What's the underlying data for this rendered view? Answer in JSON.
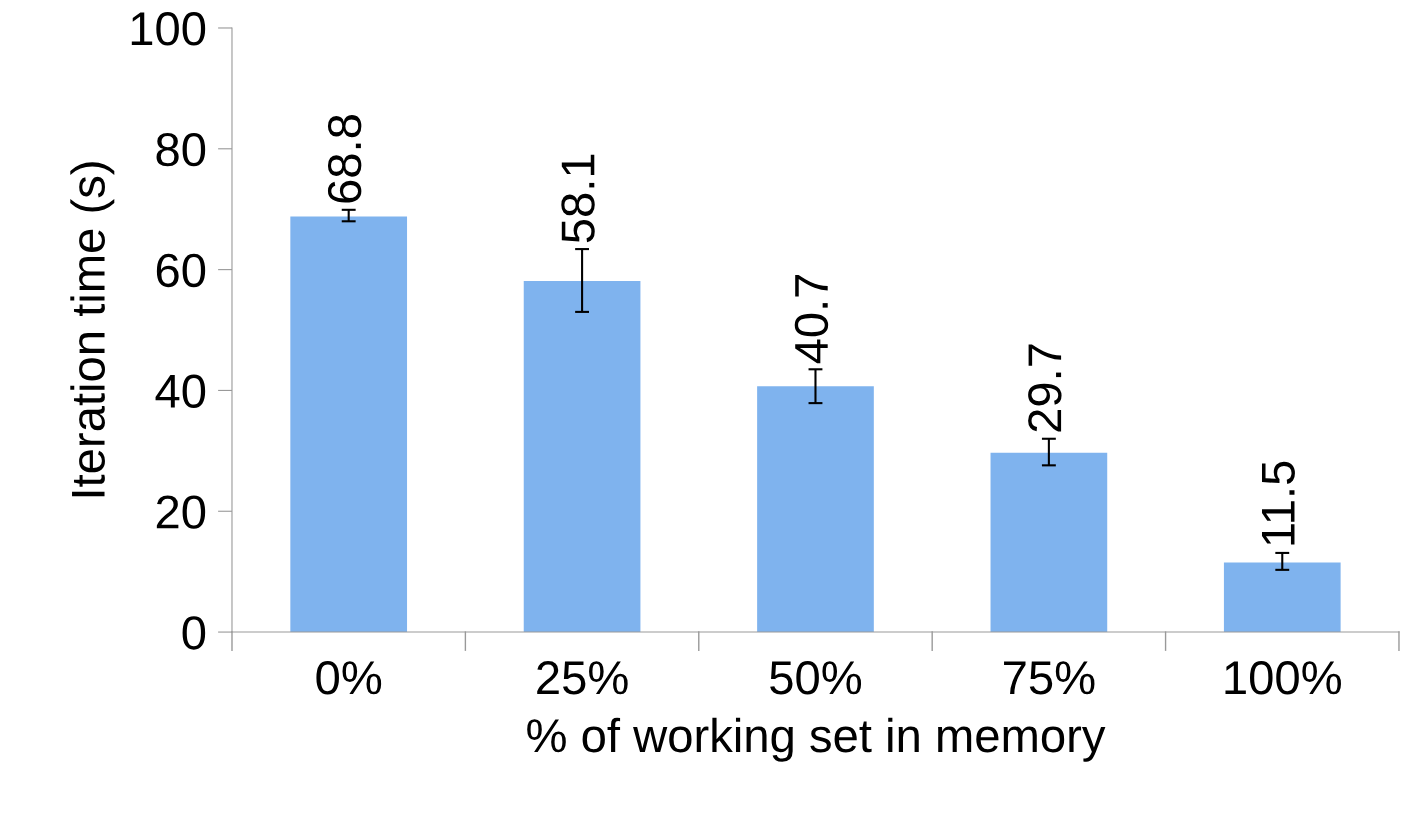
{
  "chart_data": {
    "type": "bar",
    "xlabel": "% of working set in memory",
    "ylabel": "Iteration time (s)",
    "categories": [
      "0%",
      "25%",
      "50%",
      "75%",
      "100%"
    ],
    "values": [
      68.8,
      58.1,
      40.7,
      29.7,
      11.5
    ],
    "errors": [
      [
        68.0,
        69.9
      ],
      [
        53.0,
        63.4
      ],
      [
        37.9,
        43.5
      ],
      [
        27.6,
        32.0
      ],
      [
        10.3,
        13.1
      ]
    ],
    "color": "#7fb3ee",
    "ylim": [
      0,
      100
    ],
    "yticks": [
      0,
      20,
      40,
      60,
      80,
      100
    ],
    "grid": false,
    "data_labels": true
  }
}
